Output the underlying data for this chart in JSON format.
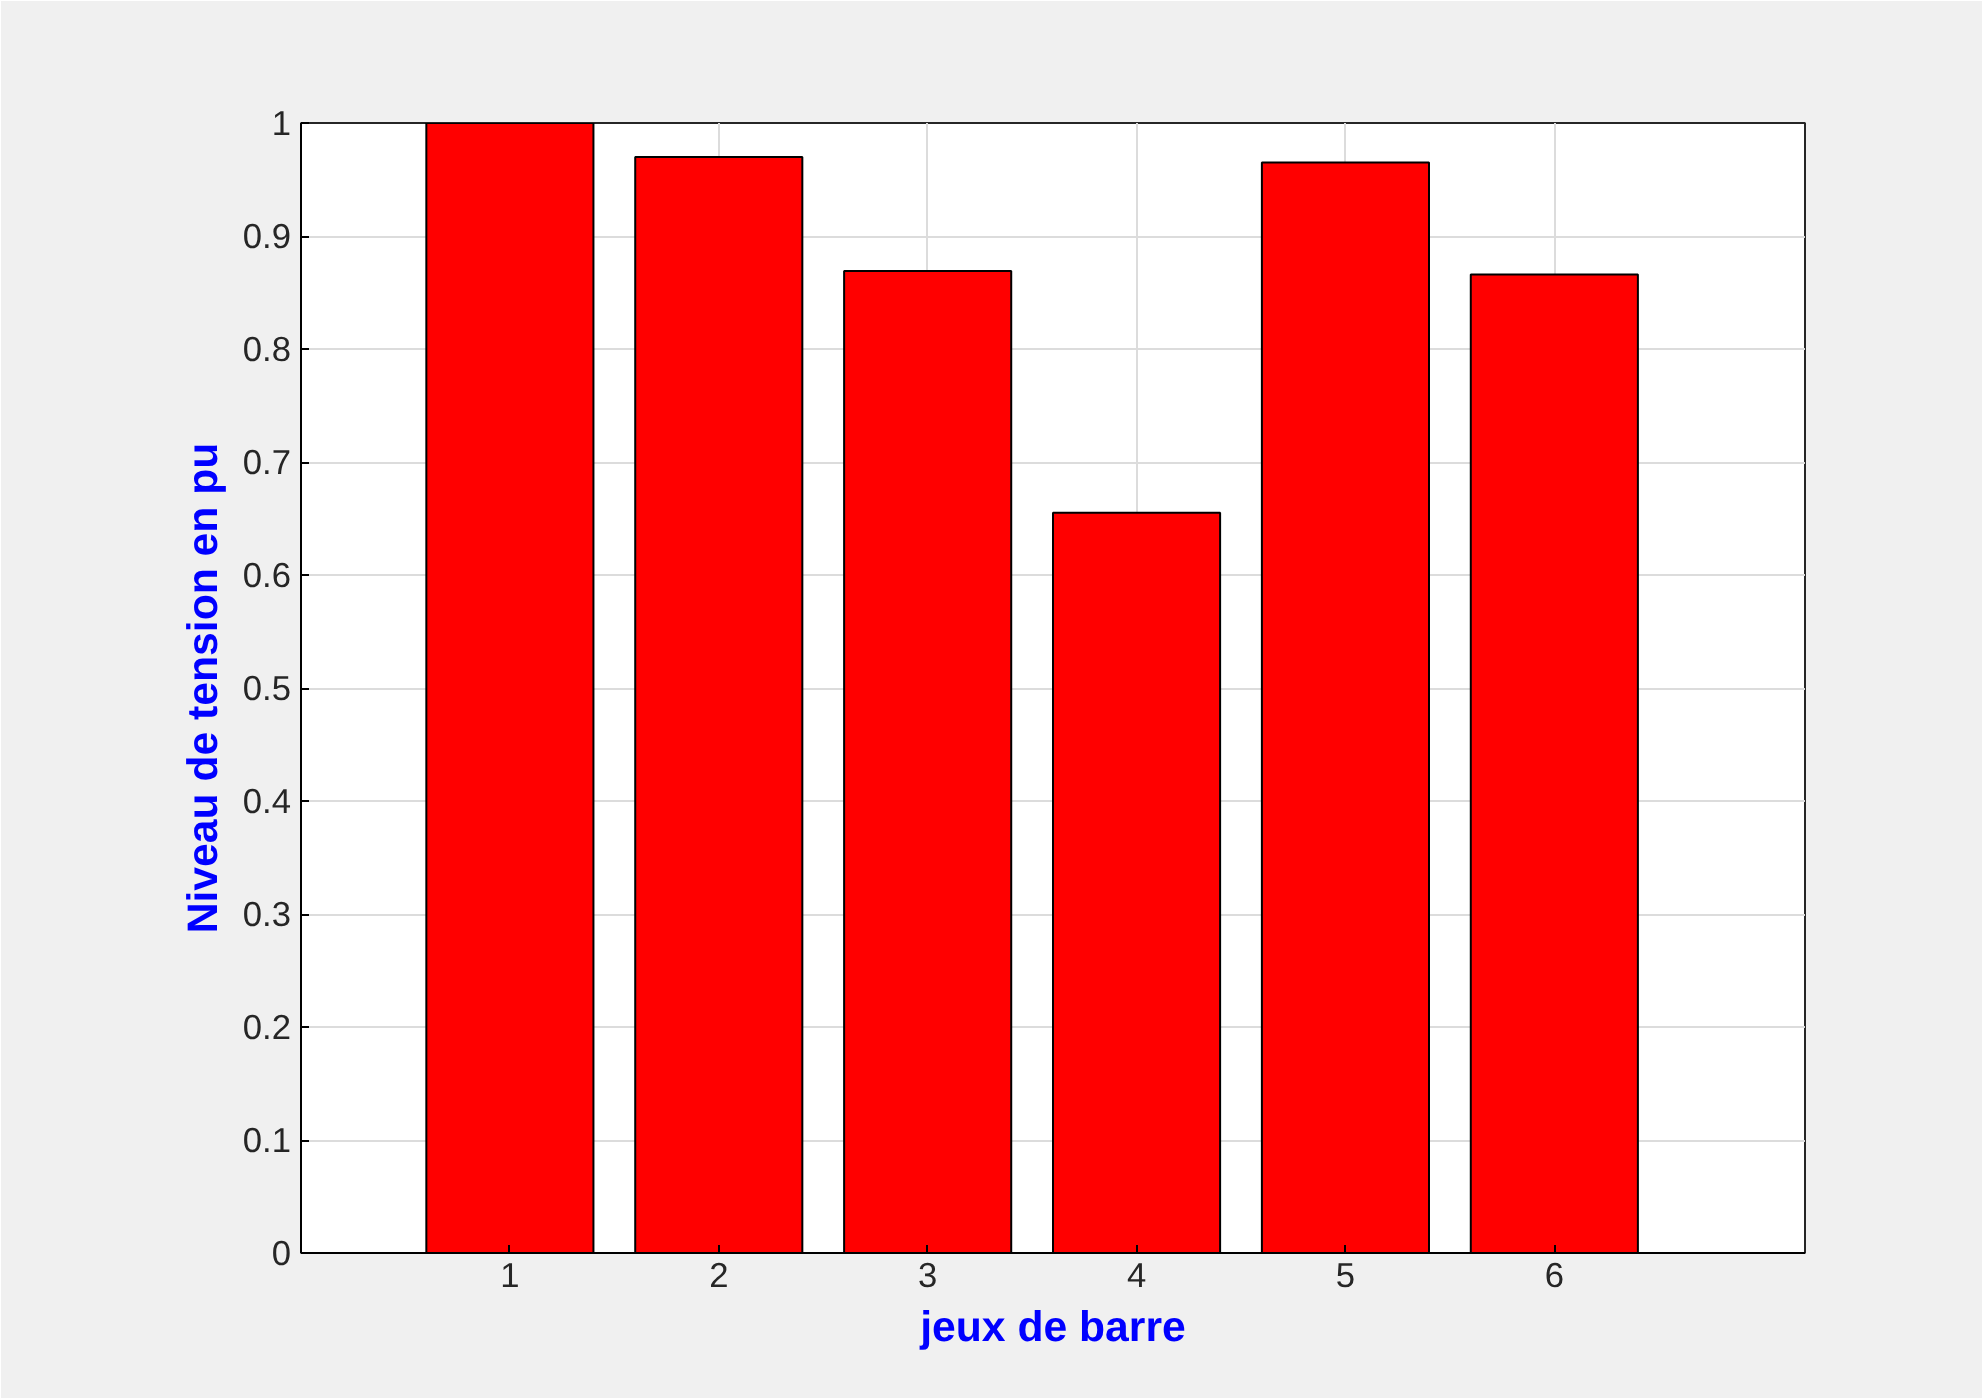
{
  "chart_data": {
    "type": "bar",
    "xlabel": "jeux de barre",
    "ylabel": "Niveau de tension en pu",
    "x": [
      1,
      2,
      3,
      4,
      5,
      6
    ],
    "values": [
      1.0,
      0.97,
      0.869,
      0.655,
      0.965,
      0.866
    ],
    "color": "#ff0000",
    "xlim": [
      0,
      7.2
    ],
    "xticks": [
      1,
      2,
      3,
      4,
      5,
      6
    ],
    "ylim": [
      0,
      1
    ],
    "yticks": [
      0,
      0.1,
      0.2,
      0.3,
      0.4,
      0.5,
      0.6,
      0.7,
      0.8,
      0.9,
      1
    ],
    "grid": true
  }
}
